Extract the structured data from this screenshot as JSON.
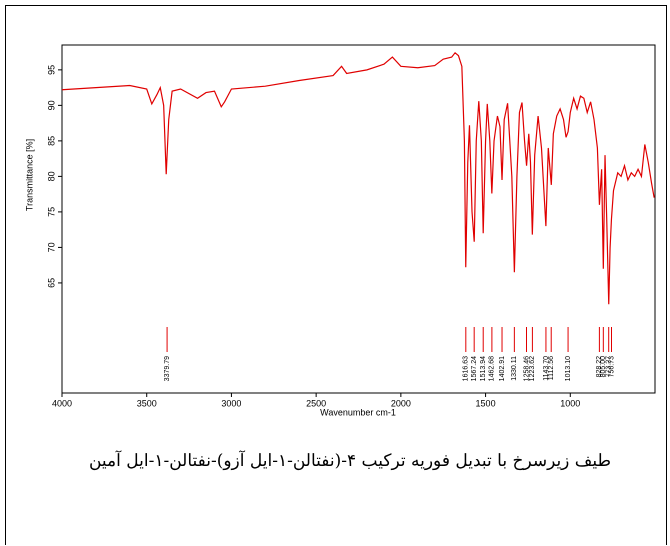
{
  "chart_data": {
    "type": "line",
    "caption": "طیف زیرسرخ با تبدیل فوریه ترکیب ۴-(نفتالن-۱-ایل آزو)-نفتالن-۱-ایل آمین",
    "x_label": "Wavenumber cm-1",
    "y_label": "Transmittance [%]",
    "xlim": [
      4000,
      500
    ],
    "ylim": [
      49.5,
      98.5
    ],
    "xticks": [
      4000,
      3500,
      3000,
      2500,
      2000,
      1500,
      1000
    ],
    "yticks": [
      65,
      70,
      75,
      80,
      85,
      90,
      95
    ],
    "grid": false,
    "series": [
      {
        "color": "#e00000",
        "x": [
          4000,
          3800,
          3600,
          3500,
          3470,
          3440,
          3420,
          3400,
          3385,
          3370,
          3350,
          3300,
          3200,
          3150,
          3100,
          3060,
          3040,
          3000,
          2800,
          2600,
          2400,
          2350,
          2320,
          2200,
          2100,
          2050,
          2000,
          1900,
          1800,
          1750,
          1700,
          1680,
          1660,
          1640,
          1625,
          1617,
          1605,
          1595,
          1580,
          1567,
          1555,
          1540,
          1525,
          1514,
          1500,
          1490,
          1475,
          1463,
          1450,
          1430,
          1415,
          1403,
          1390,
          1370,
          1345,
          1330,
          1315,
          1300,
          1285,
          1270,
          1258,
          1245,
          1235,
          1224,
          1210,
          1190,
          1170,
          1144,
          1130,
          1112,
          1100,
          1080,
          1060,
          1040,
          1025,
          1013,
          1000,
          980,
          960,
          940,
          920,
          900,
          880,
          860,
          840,
          828,
          815,
          805,
          795,
          785,
          773,
          765,
          757,
          745,
          720,
          700,
          680,
          660,
          640,
          620,
          600,
          580,
          560,
          540,
          520,
          505
        ],
        "values": [
          92.2,
          92.5,
          92.8,
          92.3,
          90.2,
          91.5,
          92.5,
          90,
          80.3,
          88,
          92,
          92.3,
          91,
          91.8,
          92,
          89.8,
          90.5,
          92.3,
          92.7,
          93.5,
          94.2,
          95.5,
          94.5,
          95,
          95.8,
          96.8,
          95.5,
          95.3,
          95.6,
          96.5,
          96.8,
          97.4,
          97,
          95.5,
          85,
          67.2,
          82,
          87.2,
          75,
          70.8,
          85,
          90.6,
          85,
          72,
          85,
          90.2,
          85,
          77.6,
          85,
          88.5,
          87,
          79.5,
          88,
          90.3,
          80,
          66.5,
          80,
          89,
          90.4,
          85,
          81.5,
          86,
          82,
          71.8,
          83,
          88.5,
          84,
          73,
          84,
          78.8,
          86,
          88.5,
          89.5,
          88,
          85.5,
          86.3,
          89,
          91,
          89.5,
          91.3,
          91,
          89,
          90.5,
          88,
          84,
          76,
          81,
          67,
          83,
          74,
          62,
          70,
          74,
          78,
          80.5,
          80,
          81.5,
          79.5,
          80.5,
          80,
          81,
          80,
          84.5,
          82,
          79,
          77
        ]
      }
    ],
    "peaks": {
      "values": [
        3379.79,
        1616.63,
        1567.24,
        1513.94,
        1462.68,
        1402.91,
        1330.11,
        1258.46,
        1223.62,
        1143.7,
        1112.56,
        1013.1,
        828.22,
        805,
        773.27,
        756.73
      ],
      "value_labels": [
        "3379.79",
        "1616.63",
        "1567.24",
        "1513.94",
        "1462.68",
        "1402.91",
        "1330.11",
        "1258.46",
        "1223.62",
        "1143.70",
        "1112.56",
        "1013.10",
        "828.22",
        "805.00",
        "773.27",
        "756.73"
      ]
    }
  }
}
